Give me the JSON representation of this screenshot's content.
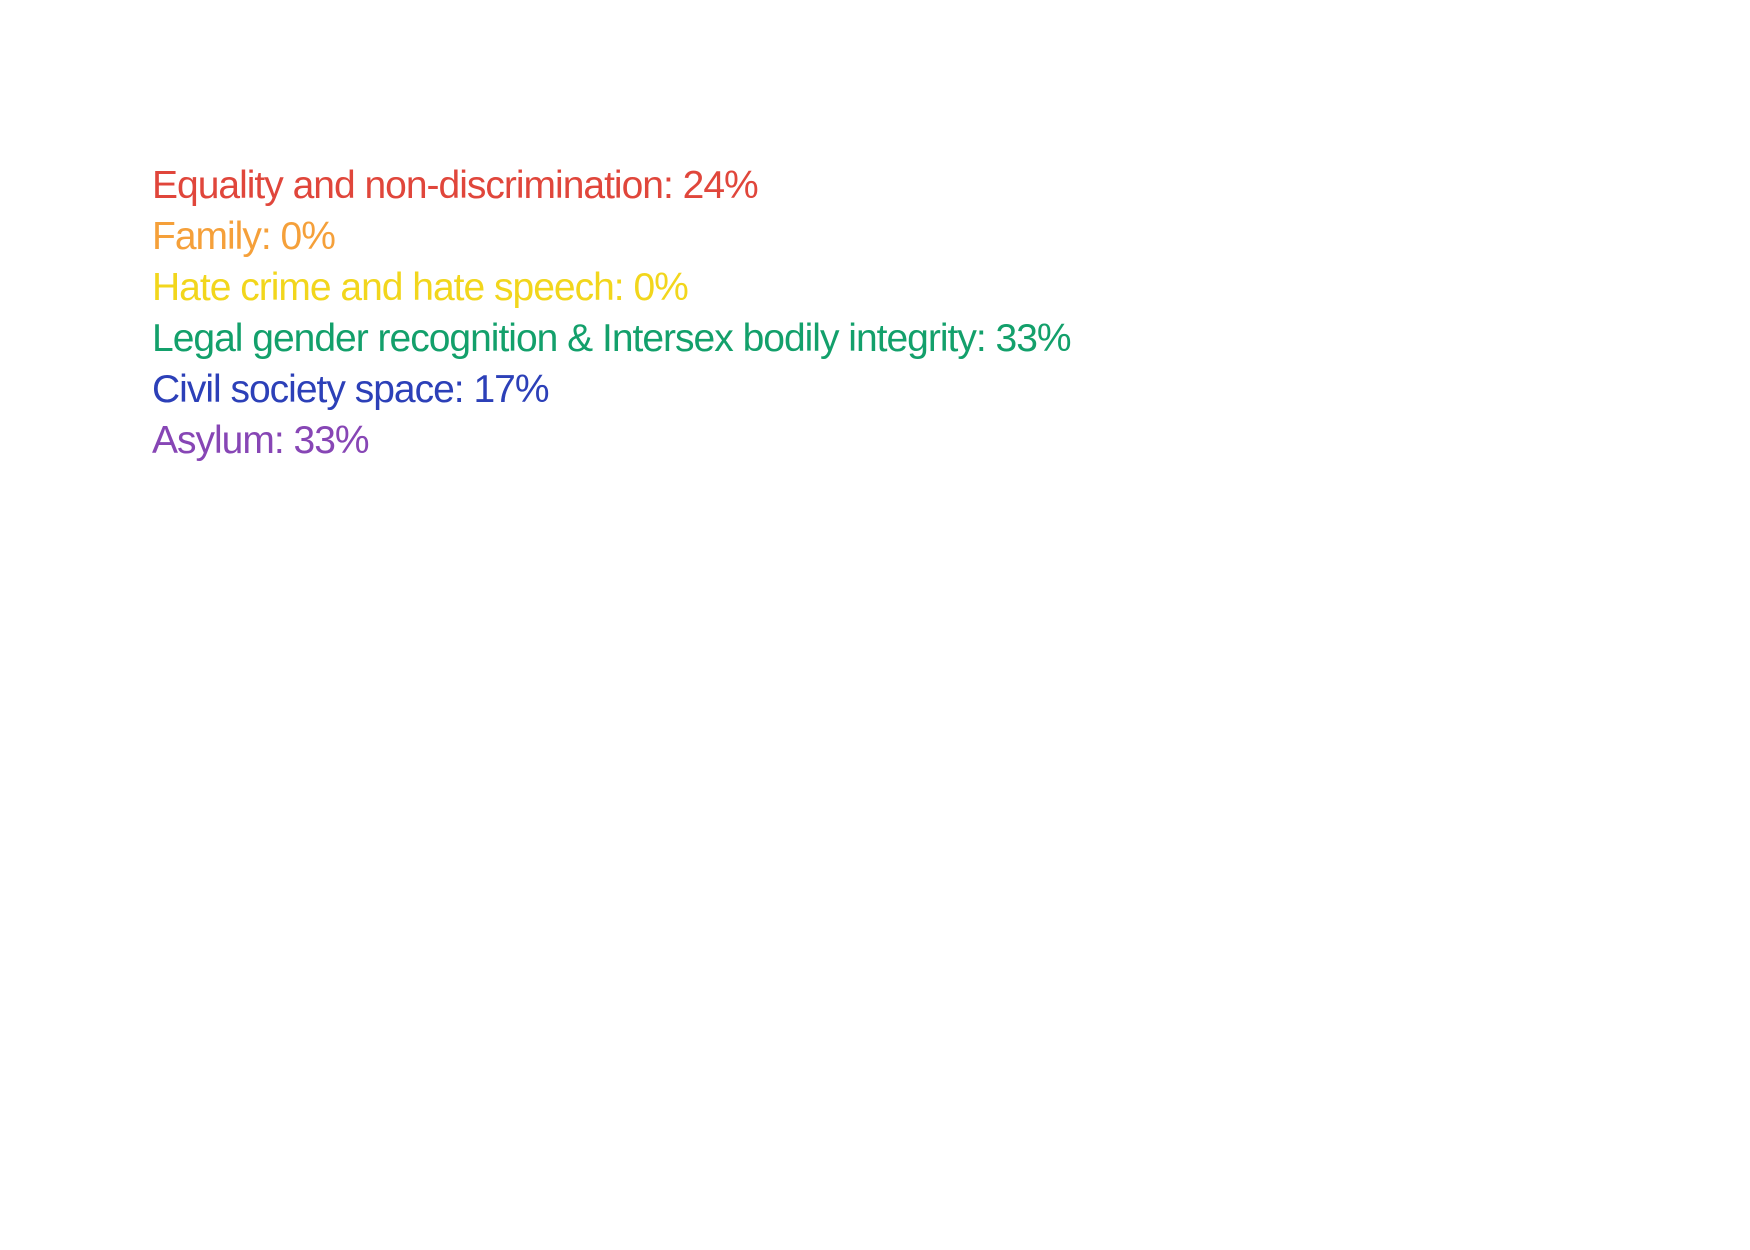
{
  "categories": [
    {
      "label": "Equality and non-discrimination: 24%",
      "color": "#e0463b"
    },
    {
      "label": "Family: 0%",
      "color": "#f5a03a"
    },
    {
      "label": "Hate crime and hate speech: 0%",
      "color": "#f2d61c"
    },
    {
      "label": "Legal gender recognition & Intersex bodily integrity: 33%",
      "color": "#13a06b"
    },
    {
      "label": "Civil society space: 17%",
      "color": "#2c40b8"
    },
    {
      "label": "Asylum: 33%",
      "color": "#8746b5"
    }
  ]
}
